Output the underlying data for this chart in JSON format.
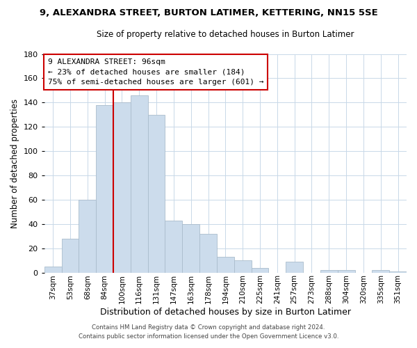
{
  "title": "9, ALEXANDRA STREET, BURTON LATIMER, KETTERING, NN15 5SE",
  "subtitle": "Size of property relative to detached houses in Burton Latimer",
  "xlabel": "Distribution of detached houses by size in Burton Latimer",
  "ylabel": "Number of detached properties",
  "bar_labels": [
    "37sqm",
    "53sqm",
    "68sqm",
    "84sqm",
    "100sqm",
    "116sqm",
    "131sqm",
    "147sqm",
    "163sqm",
    "178sqm",
    "194sqm",
    "210sqm",
    "225sqm",
    "241sqm",
    "257sqm",
    "273sqm",
    "288sqm",
    "304sqm",
    "320sqm",
    "335sqm",
    "351sqm"
  ],
  "bar_values": [
    5,
    28,
    60,
    138,
    140,
    146,
    130,
    43,
    40,
    32,
    13,
    10,
    4,
    0,
    9,
    0,
    2,
    2,
    0,
    2,
    1
  ],
  "bar_color": "#ccdcec",
  "bar_edge_color": "#aabccc",
  "ylim": [
    0,
    180
  ],
  "yticks": [
    0,
    20,
    40,
    60,
    80,
    100,
    120,
    140,
    160,
    180
  ],
  "vline_index": 4,
  "vline_color": "#cc0000",
  "annotation_title": "9 ALEXANDRA STREET: 96sqm",
  "annotation_line1": "← 23% of detached houses are smaller (184)",
  "annotation_line2": "75% of semi-detached houses are larger (601) →",
  "annotation_box_color": "#ffffff",
  "annotation_box_edge": "#cc0000",
  "footer1": "Contains HM Land Registry data © Crown copyright and database right 2024.",
  "footer2": "Contains public sector information licensed under the Open Government Licence v3.0.",
  "background_color": "#ffffff",
  "grid_color": "#c8d8e8",
  "title_fontsize": 9.5,
  "subtitle_fontsize": 8.5,
  "ylabel_fontsize": 8.5,
  "xlabel_fontsize": 9,
  "tick_fontsize": 7.5,
  "ytick_fontsize": 8,
  "annotation_fontsize": 8,
  "footer_fontsize": 6.2
}
